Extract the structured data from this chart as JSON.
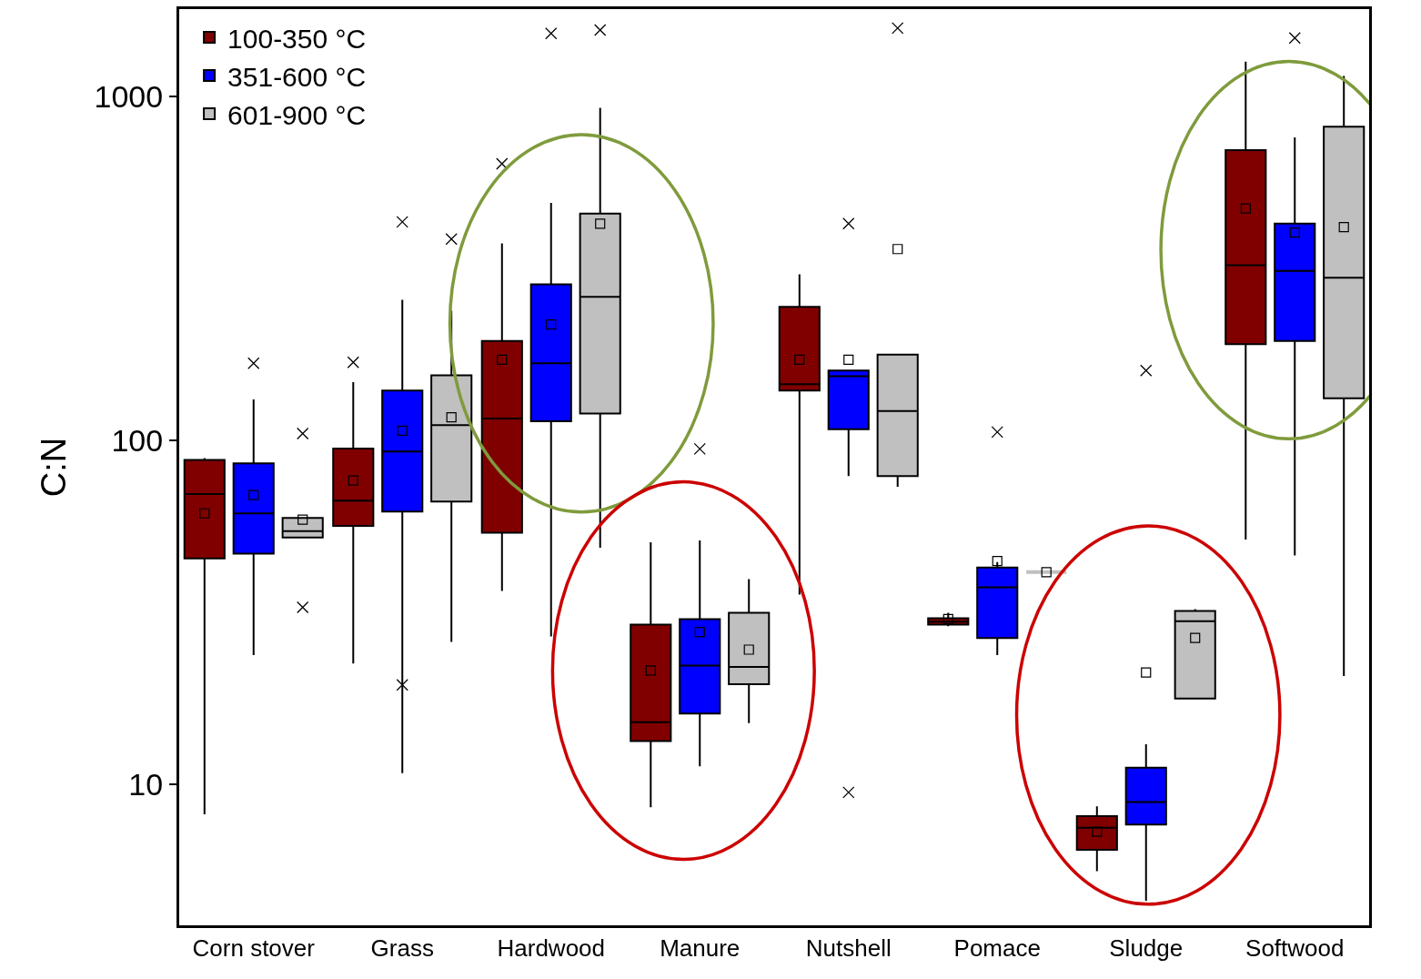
{
  "chart_data": {
    "type": "box",
    "ylabel": "C:N",
    "log": true,
    "ylim": [
      3.9,
      1800
    ],
    "yticks": [
      10,
      100,
      1000
    ],
    "legend": "top left",
    "marker": "square",
    "categories": [
      "Corn stover",
      "Grass",
      "Hardwood",
      "Manure",
      "Nutshell",
      "Pomace",
      "Sludge",
      "Softwood"
    ],
    "series": [
      {
        "name": "100-350 °C",
        "color": "#800000",
        "boxes": [
          {
            "low": 8.2,
            "q1": 45.5,
            "median": 70,
            "q3": 88,
            "high": 89,
            "mean": 61.5
          },
          {
            "low": 22.5,
            "q1": 56.6,
            "median": 67,
            "q3": 95,
            "high": 148,
            "mean": 76.6,
            "outliers": [
              169
            ]
          },
          {
            "low": 36.6,
            "q1": 54,
            "median": 116,
            "q3": 195,
            "high": 375,
            "mean": 172,
            "outliers": [
              639
            ]
          },
          {
            "low": 8.6,
            "q1": 13.4,
            "median": 15.2,
            "q3": 29.2,
            "high": 50.7,
            "mean": 21.5
          },
          {
            "low": 35.7,
            "q1": 140,
            "median": 146,
            "q3": 245,
            "high": 305,
            "mean": 172
          },
          {
            "low": 28.9,
            "q1": 29.2,
            "median": 29.8,
            "q3": 30.5,
            "high": 31.6,
            "mean": 30.3
          },
          {
            "low": 5.6,
            "q1": 6.47,
            "median": 7.5,
            "q3": 8.1,
            "high": 8.65,
            "mean": 7.3
          },
          {
            "low": 51.6,
            "q1": 191,
            "median": 324,
            "q3": 700,
            "high": 1267,
            "mean": 474
          }
        ]
      },
      {
        "name": "351-600 °C",
        "color": "#0000ff",
        "boxes": [
          {
            "low": 23.8,
            "q1": 47,
            "median": 61.5,
            "q3": 86,
            "high": 132,
            "mean": 69.5,
            "outliers": [
              168
            ]
          },
          {
            "low": 10.8,
            "q1": 62.3,
            "median": 93,
            "q3": 140,
            "high": 257,
            "mean": 107,
            "outliers": [
              433,
              19.5
            ]
          },
          {
            "low": 27,
            "q1": 114,
            "median": 168,
            "q3": 285,
            "high": 492,
            "mean": 218,
            "outliers": [
              1530
            ]
          },
          {
            "low": 11.3,
            "q1": 16.1,
            "median": 22.2,
            "q3": 30.3,
            "high": 51.3,
            "mean": 27.8,
            "outliers": [
              94.7
            ]
          },
          {
            "low": 79,
            "q1": 108,
            "median": 154,
            "q3": 160,
            "high": 160,
            "mean": 172,
            "outliers": [
              428,
              9.5
            ]
          },
          {
            "low": 23.8,
            "q1": 26.7,
            "median": 37.5,
            "q3": 42.8,
            "high": 44.4,
            "mean": 44.7,
            "outliers": [
              106
            ]
          },
          {
            "low": 4.6,
            "q1": 7.66,
            "median": 8.9,
            "q3": 11.2,
            "high": 13.1,
            "mean": 21.2,
            "outliers": [
              160
            ]
          },
          {
            "low": 46.4,
            "q1": 195,
            "median": 312,
            "q3": 428,
            "high": 762,
            "mean": 403,
            "outliers": [
              1483
            ]
          }
        ]
      },
      {
        "name": "601-900 °C",
        "color": "#c0c0c0",
        "boxes": [
          {
            "low": 52.3,
            "q1": 52.3,
            "median": 54.6,
            "q3": 59.7,
            "high": 59.7,
            "mean": 59,
            "outliers": [
              105,
              32.8
            ]
          },
          {
            "low": 26,
            "q1": 66.6,
            "median": 111,
            "q3": 155,
            "high": 239,
            "mean": 117,
            "outliers": [
              386
            ]
          },
          {
            "low": 48.9,
            "q1": 120,
            "median": 262,
            "q3": 458,
            "high": 929,
            "mean": 428,
            "outliers": [
              1565
            ]
          },
          {
            "low": 15.1,
            "q1": 19.6,
            "median": 22,
            "q3": 31.6,
            "high": 39.6,
            "mean": 24.7
          },
          {
            "low": 73.5,
            "q1": 79,
            "median": 122,
            "q3": 178,
            "high": 178,
            "mean": 361,
            "outliers": [
              1585
            ]
          },
          {
            "low": 41.5,
            "q1": 41.5,
            "median": 41.5,
            "q3": 41.5,
            "high": 41.5,
            "mean": 41.5
          },
          {
            "low": 17.8,
            "q1": 17.8,
            "median": 29.9,
            "q3": 32,
            "high": 32.4,
            "mean": 26.7
          },
          {
            "low": 20.7,
            "q1": 133,
            "median": 298,
            "q3": 819,
            "high": 1150,
            "mean": 418
          }
        ]
      }
    ]
  }
}
